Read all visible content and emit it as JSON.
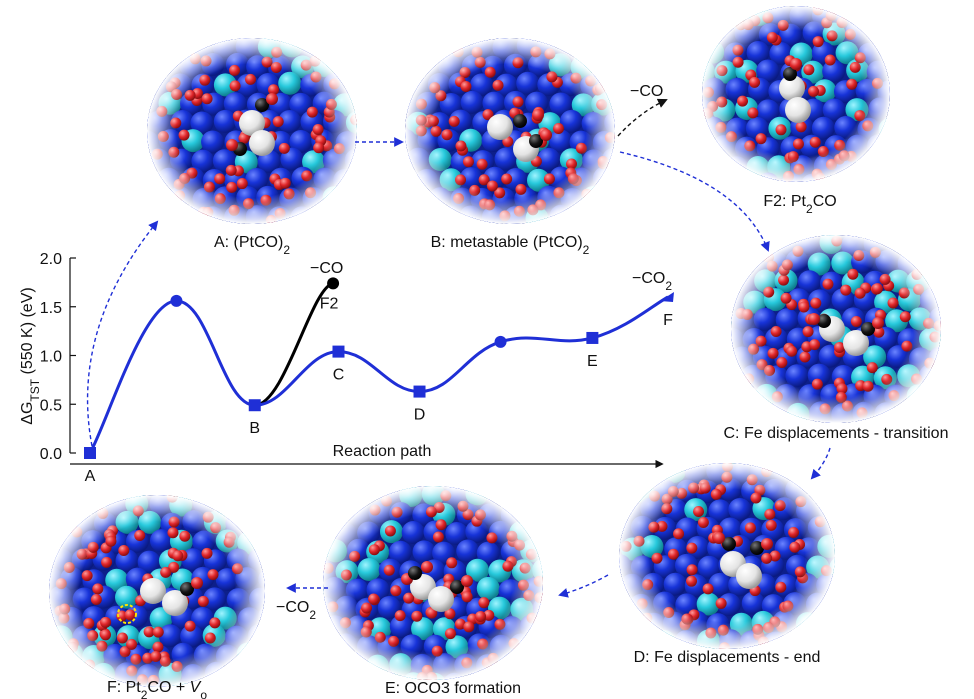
{
  "chart_data": {
    "type": "line",
    "xlabel": "Reaction path",
    "ylabel": "ΔG",
    "ylabel_sub": "TST",
    "ylabel_rest": " (550 K) (eV)",
    "ylim": [
      0,
      2.0
    ],
    "yticks": [
      0.0,
      0.5,
      1.0,
      1.5,
      2.0
    ],
    "ytick_labels": [
      "0.0",
      "0.5",
      "1.0",
      "1.5",
      "2.0"
    ],
    "main_path": {
      "color": "#1f2fd6",
      "points": [
        {
          "x": 0.0,
          "y": 0.0,
          "label": "A",
          "marker": "square"
        },
        {
          "x": 1.6,
          "y": 1.56,
          "label": "",
          "marker": "circle"
        },
        {
          "x": 3.05,
          "y": 0.49,
          "label": "B",
          "marker": "square"
        },
        {
          "x": 4.6,
          "y": 1.04,
          "label": "C",
          "marker": "square"
        },
        {
          "x": 6.1,
          "y": 0.63,
          "label": "D",
          "marker": "square"
        },
        {
          "x": 7.6,
          "y": 1.14,
          "label": "",
          "marker": "circle"
        },
        {
          "x": 9.3,
          "y": 1.18,
          "label": "E",
          "marker": "square"
        },
        {
          "x": 10.7,
          "y": 1.6,
          "label": "F",
          "marker": "triangle"
        }
      ]
    },
    "branch_path": {
      "color": "#000000",
      "points": [
        {
          "x": 3.05,
          "y": 0.49,
          "label": "",
          "marker": "none"
        },
        {
          "x": 4.5,
          "y": 1.74,
          "label": "F2",
          "marker": "circle"
        }
      ]
    },
    "annotations": {
      "f2_loss": "−CO",
      "f_loss_base": "−CO",
      "f_loss_sub": "2"
    }
  },
  "panels": {
    "a": "A: (PtCO)",
    "a_sub": "2",
    "b": "B: metastable (PtCO)",
    "b_sub": "2",
    "f2_pre": "F2: Pt",
    "f2_sub": "2",
    "f2_post": "CO",
    "c": "C: Fe displacements - transition",
    "d": "D: Fe displacements - end",
    "e": "E: OCO3 formation",
    "f_pre": "F: Pt",
    "f_sub": "2",
    "f_mid": "CO + ",
    "f_v": "V",
    "f_vsub": "o"
  },
  "arrow_labels": {
    "b_to_f2": "−CO",
    "e_to_f_base": "−CO",
    "e_to_f_sub": "2"
  },
  "colors": {
    "fe_atom": "#1733d8",
    "fe_light": "#27c9dc",
    "o_atom": "#e0262a",
    "pt_atom": "#f2f2f2",
    "c_atom": "#141414",
    "path_blue": "#1f2fd6"
  }
}
